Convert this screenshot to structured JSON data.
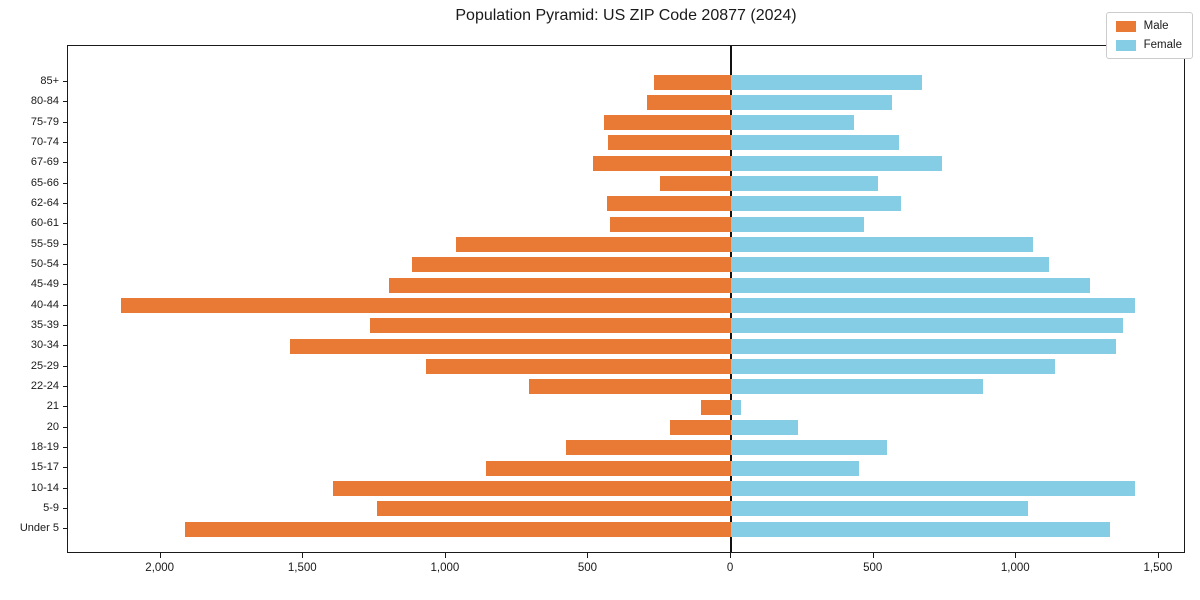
{
  "chart_data": {
    "type": "bar",
    "subtype": "population-pyramid-horizontal-diverging",
    "title": "Population Pyramid: US ZIP Code 20877 (2024)",
    "categories": [
      "85+",
      "80-84",
      "75-79",
      "70-74",
      "67-69",
      "65-66",
      "62-64",
      "60-61",
      "55-59",
      "50-54",
      "45-49",
      "40-44",
      "35-39",
      "30-34",
      "25-29",
      "22-24",
      "21",
      "20",
      "18-19",
      "15-17",
      "10-14",
      "5-9",
      "Under 5"
    ],
    "series": [
      {
        "name": "Male",
        "side": "left",
        "color": "#E87A36",
        "values": [
          270,
          295,
          445,
          430,
          485,
          250,
          435,
          425,
          965,
          1120,
          1200,
          2140,
          1265,
          1545,
          1070,
          710,
          105,
          215,
          580,
          860,
          1395,
          1240,
          1915
        ]
      },
      {
        "name": "Female",
        "side": "right",
        "color": "#85CDE5",
        "values": [
          670,
          565,
          430,
          590,
          740,
          515,
          595,
          465,
          1060,
          1115,
          1260,
          1415,
          1375,
          1350,
          1135,
          885,
          35,
          235,
          545,
          450,
          1415,
          1040,
          1330
        ]
      }
    ],
    "xlabel": "",
    "ylabel": "",
    "xlim": [
      -2325,
      1595
    ],
    "x_tick_values": [
      -2000,
      -1500,
      -1000,
      -500,
      0,
      500,
      1000,
      1500
    ],
    "x_tick_labels": [
      "2,000",
      "1,500",
      "1,000",
      "500",
      "0",
      "500",
      "1,000",
      "1,500"
    ],
    "grid": false,
    "legend_position": "upper-right",
    "zero_axis_line": true
  }
}
